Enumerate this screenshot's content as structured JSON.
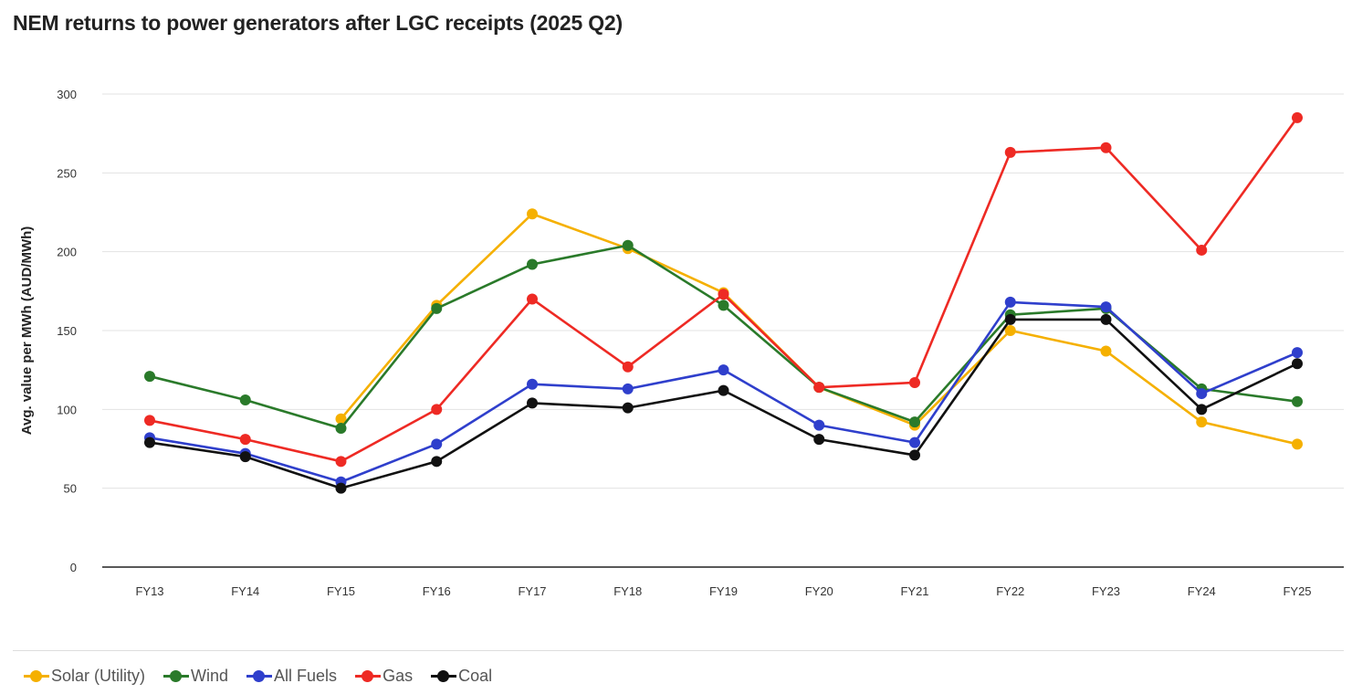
{
  "chart_data": {
    "type": "line",
    "title": "NEM returns to power generators after LGC receipts (2025 Q2)",
    "ylabel": "Avg. value per MWh (AUD/MWh)",
    "xlabel": "",
    "categories": [
      "FY13",
      "FY14",
      "FY15",
      "FY16",
      "FY17",
      "FY18",
      "FY19",
      "FY20",
      "FY21",
      "FY22",
      "FY23",
      "FY24",
      "FY25"
    ],
    "ylim": [
      0,
      300
    ],
    "yticks": [
      0,
      50,
      100,
      150,
      200,
      250,
      300
    ],
    "ytick_labels": [
      "0",
      "50",
      "100",
      "150",
      "200",
      "250",
      "300"
    ],
    "grid": true,
    "legend_position": "bottom-left",
    "series": [
      {
        "name": "Solar (Utility)",
        "color": "#f5b000",
        "values": [
          null,
          null,
          94,
          166,
          224,
          202,
          174,
          114,
          90,
          150,
          137,
          92,
          78
        ]
      },
      {
        "name": "Wind",
        "color": "#2a7a2a",
        "values": [
          121,
          106,
          88,
          164,
          192,
          204,
          166,
          114,
          92,
          160,
          164,
          113,
          105
        ]
      },
      {
        "name": "All Fuels",
        "color": "#2f3fcc",
        "values": [
          82,
          72,
          54,
          78,
          116,
          113,
          125,
          90,
          79,
          168,
          165,
          110,
          136
        ]
      },
      {
        "name": "Gas",
        "color": "#ee2a24",
        "values": [
          93,
          81,
          67,
          100,
          170,
          127,
          173,
          114,
          117,
          263,
          266,
          201,
          285
        ]
      },
      {
        "name": "Coal",
        "color": "#111111",
        "values": [
          79,
          70,
          50,
          67,
          104,
          101,
          112,
          81,
          71,
          157,
          157,
          100,
          129
        ]
      }
    ]
  }
}
